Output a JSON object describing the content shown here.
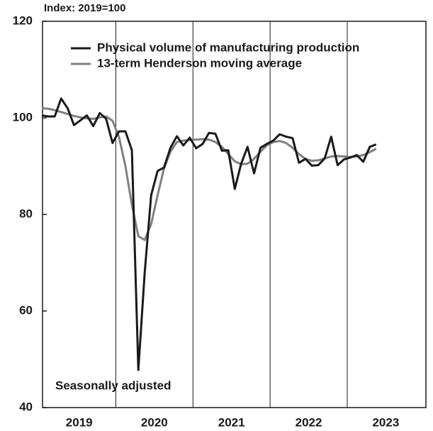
{
  "chart_data": {
    "type": "line",
    "axis_label": "Index:  2019=100",
    "annotation": "Seasonally adjusted",
    "x": [
      2019.042,
      2019.125,
      2019.208,
      2019.292,
      2019.375,
      2019.458,
      2019.542,
      2019.625,
      2019.708,
      2019.792,
      2019.875,
      2019.958,
      2020.042,
      2020.125,
      2020.208,
      2020.292,
      2020.375,
      2020.458,
      2020.542,
      2020.625,
      2020.708,
      2020.792,
      2020.875,
      2020.958,
      2021.042,
      2021.125,
      2021.208,
      2021.292,
      2021.375,
      2021.458,
      2021.542,
      2021.625,
      2021.708,
      2021.792,
      2021.875,
      2021.958,
      2022.042,
      2022.125,
      2022.208,
      2022.292,
      2022.375,
      2022.458,
      2022.542,
      2022.625,
      2022.708,
      2022.792,
      2022.875,
      2022.958,
      2023.042,
      2023.125,
      2023.208,
      2023.292,
      2023.375
    ],
    "series": [
      {
        "name": "Physical volume of manufacturing production",
        "color": "#1a1a1a",
        "values": [
          100.5,
          100.3,
          100.3,
          104,
          102,
          98.5,
          99.5,
          100.5,
          98.3,
          101,
          99.8,
          94.8,
          97.2,
          97.2,
          93.3,
          47.8,
          68,
          84,
          89,
          89.7,
          93.8,
          96.2,
          94.3,
          95.9,
          93.7,
          94.6,
          96.9,
          96.7,
          93.2,
          93.3,
          85.3,
          90.5,
          94,
          88.5,
          93.8,
          94.6,
          95.3,
          96.6,
          96.1,
          95.8,
          90.7,
          91.5,
          90.1,
          90.2,
          91.6,
          96.1,
          90.2,
          91.4,
          91.8,
          92.3,
          90.9,
          94,
          94.5
        ]
      },
      {
        "name": "13-term Henderson moving average",
        "color": "#808080",
        "values": [
          102,
          101.9,
          101.6,
          101.2,
          100.8,
          100.4,
          100.1,
          99.9,
          99.8,
          100.1,
          100.3,
          99.4,
          96,
          90,
          82,
          75.5,
          74.7,
          78,
          84,
          89.5,
          93,
          95,
          95.3,
          95.4,
          95.5,
          95.6,
          95.5,
          95,
          94,
          92.5,
          91,
          90.4,
          90.5,
          91.5,
          93,
          94.3,
          95,
          95.2,
          94.8,
          93.8,
          92.5,
          91.5,
          91.1,
          91.2,
          91.6,
          92,
          92.1,
          92,
          91.9,
          92,
          92.3,
          92.9,
          93.6
        ]
      }
    ],
    "xlim": [
      2019.05,
      2024.02
    ],
    "xticks": [
      2019,
      2020,
      2021,
      2022,
      2023
    ],
    "ylim": [
      40,
      120
    ],
    "yticks": [
      40,
      60,
      80,
      100,
      120
    ],
    "grid": "x",
    "legend": "upper left"
  }
}
